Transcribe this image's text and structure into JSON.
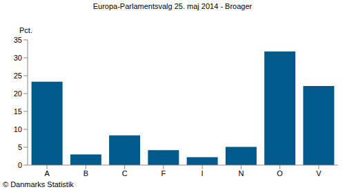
{
  "chart_data": {
    "type": "bar",
    "title": "Europa-Parlamentsvalg 25. maj 2014 - Broager",
    "ylabel": "Pct.",
    "annotations": [
      "© Danmarks Statistik"
    ],
    "categories": [
      "A",
      "B",
      "C",
      "F",
      "I",
      "N",
      "O",
      "V"
    ],
    "values": [
      23.3,
      3.0,
      8.3,
      4.2,
      2.2,
      5.1,
      31.8,
      22.1
    ],
    "color": "#005a8c",
    "ylim": [
      0,
      35
    ],
    "yticks": [
      0,
      5,
      10,
      15,
      20,
      25,
      30,
      35
    ],
    "grid": false
  }
}
